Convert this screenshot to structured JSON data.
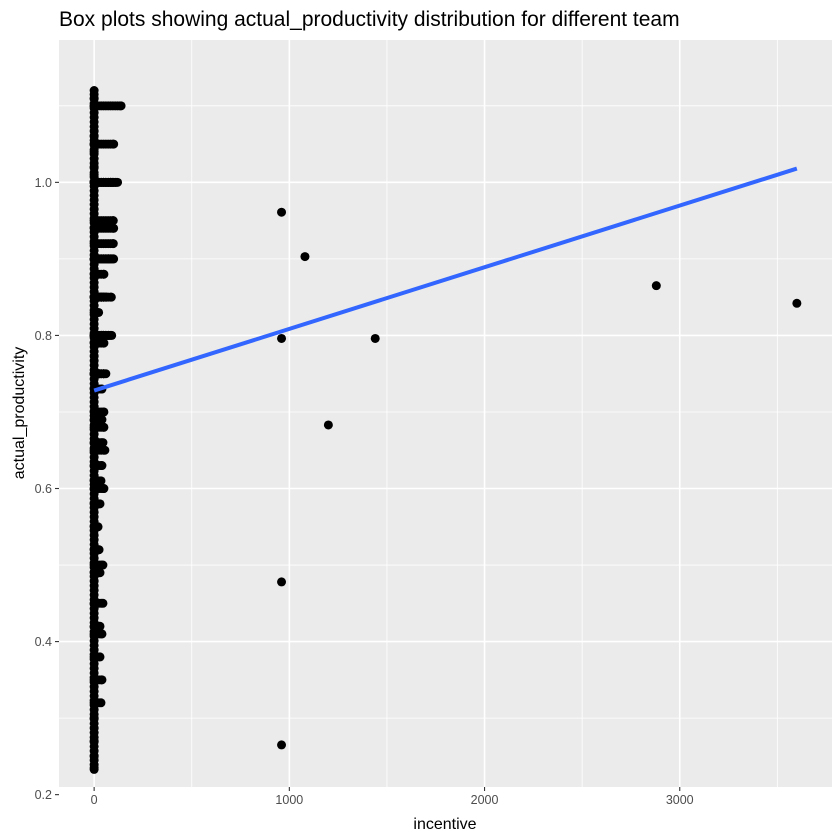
{
  "chart_data": {
    "type": "scatter",
    "title": "Box plots showing actual_productivity distribution for different team",
    "xlabel": "incentive",
    "ylabel": "actual_productivity",
    "xlim": [
      -180,
      3780
    ],
    "ylim": [
      0.21,
      1.186
    ],
    "x_ticks": [
      0,
      1000,
      2000,
      3000
    ],
    "x_tick_labels": [
      "0",
      "1000",
      "2000",
      "3000"
    ],
    "y_ticks": [
      0.2,
      0.4,
      0.6,
      0.8,
      1.0
    ],
    "y_tick_labels": [
      "0.2",
      "0.4",
      "0.6",
      "0.8",
      "1.0"
    ],
    "grid": true,
    "background": "#ebebeb",
    "point_color": "#000000",
    "smooth_line": {
      "method": "lm",
      "color": "#3366ff",
      "x": [
        0,
        3600
      ],
      "y": [
        0.728,
        1.018
      ]
    },
    "outlier_points": [
      {
        "x": 960,
        "y": 0.961
      },
      {
        "x": 1080,
        "y": 0.903
      },
      {
        "x": 960,
        "y": 0.796
      },
      {
        "x": 1440,
        "y": 0.796
      },
      {
        "x": 1200,
        "y": 0.683
      },
      {
        "x": 960,
        "y": 0.478
      },
      {
        "x": 960,
        "y": 0.265
      },
      {
        "x": 2880,
        "y": 0.865
      },
      {
        "x": 3600,
        "y": 0.842
      }
    ],
    "cluster_points": [
      {
        "x": 0,
        "y": 1.12
      },
      {
        "x": 0,
        "y": 1.11
      },
      {
        "x": 0,
        "y": 1.1
      },
      {
        "x": 138,
        "y": 1.1
      },
      {
        "x": 0,
        "y": 1.06
      },
      {
        "x": 0,
        "y": 1.05
      },
      {
        "x": 100,
        "y": 1.05
      },
      {
        "x": 0,
        "y": 1.04
      },
      {
        "x": 0,
        "y": 1.02
      },
      {
        "x": 0,
        "y": 1.01
      },
      {
        "x": 90,
        "y": 1.0
      },
      {
        "x": 100,
        "y": 1.0
      },
      {
        "x": 113,
        "y": 1.0
      },
      {
        "x": 120,
        "y": 1.0
      },
      {
        "x": 98,
        "y": 0.95
      },
      {
        "x": 100,
        "y": 0.94
      },
      {
        "x": 98,
        "y": 0.92
      },
      {
        "x": 75,
        "y": 0.9
      },
      {
        "x": 90,
        "y": 0.9
      },
      {
        "x": 100,
        "y": 0.9
      },
      {
        "x": 50,
        "y": 0.88
      },
      {
        "x": 38,
        "y": 0.85
      },
      {
        "x": 50,
        "y": 0.85
      },
      {
        "x": 63,
        "y": 0.85
      },
      {
        "x": 88,
        "y": 0.85
      },
      {
        "x": 23,
        "y": 0.83
      },
      {
        "x": 45,
        "y": 0.8
      },
      {
        "x": 60,
        "y": 0.8
      },
      {
        "x": 75,
        "y": 0.8
      },
      {
        "x": 90,
        "y": 0.8
      },
      {
        "x": 50,
        "y": 0.79
      },
      {
        "x": 26,
        "y": 0.75
      },
      {
        "x": 50,
        "y": 0.75
      },
      {
        "x": 60,
        "y": 0.75
      },
      {
        "x": 40,
        "y": 0.73
      },
      {
        "x": 50,
        "y": 0.7
      },
      {
        "x": 40,
        "y": 0.69
      },
      {
        "x": 50,
        "y": 0.68
      },
      {
        "x": 45,
        "y": 0.66
      },
      {
        "x": 55,
        "y": 0.65
      },
      {
        "x": 40,
        "y": 0.63
      },
      {
        "x": 35,
        "y": 0.61
      },
      {
        "x": 50,
        "y": 0.6
      },
      {
        "x": 30,
        "y": 0.58
      },
      {
        "x": 20,
        "y": 0.55
      },
      {
        "x": 25,
        "y": 0.52
      },
      {
        "x": 45,
        "y": 0.5
      },
      {
        "x": 30,
        "y": 0.49
      },
      {
        "x": 45,
        "y": 0.45
      },
      {
        "x": 30,
        "y": 0.42
      },
      {
        "x": 40,
        "y": 0.41
      },
      {
        "x": 30,
        "y": 0.38
      },
      {
        "x": 40,
        "y": 0.35
      },
      {
        "x": 35,
        "y": 0.32
      },
      {
        "x": 0,
        "y": 0.3
      },
      {
        "x": 0,
        "y": 0.27
      },
      {
        "x": 0,
        "y": 0.25
      },
      {
        "x": 0,
        "y": 0.235
      }
    ],
    "dense_column": {
      "x": 0,
      "y_min": 0.233,
      "y_max": 1.12
    }
  }
}
